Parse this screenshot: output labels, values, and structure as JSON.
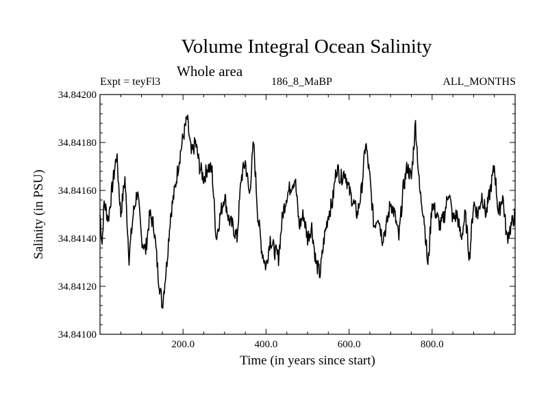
{
  "chart_data": {
    "type": "line",
    "title": "Volume Integral Ocean Salinity",
    "subtitle": "Whole area",
    "header_left": "Expt = teyFl3",
    "header_center": "186_8_MaBP",
    "header_right": "ALL_MONTHS",
    "xlabel": "Time (in years since start)",
    "ylabel": "Salinity (in PSU)",
    "xlim": [
      0,
      1000
    ],
    "ylim": [
      34.841,
      34.842
    ],
    "x_ticks": [
      200,
      400,
      600,
      800
    ],
    "x_tick_labels": [
      "200.0",
      "400.0",
      "600.0",
      "800.0"
    ],
    "y_ticks": [
      34.841,
      34.8412,
      34.8414,
      34.8416,
      34.8418,
      34.842
    ],
    "y_tick_labels": [
      "34.84100",
      "34.84120",
      "34.84140",
      "34.84160",
      "34.84180",
      "34.84200"
    ],
    "series": [
      {
        "name": "Salinity",
        "x": [
          0,
          5,
          10,
          20,
          30,
          40,
          50,
          60,
          70,
          80,
          90,
          100,
          110,
          120,
          130,
          140,
          150,
          160,
          170,
          180,
          190,
          200,
          210,
          220,
          230,
          240,
          250,
          260,
          270,
          280,
          290,
          300,
          310,
          320,
          330,
          340,
          350,
          360,
          370,
          380,
          390,
          400,
          410,
          420,
          430,
          440,
          450,
          460,
          470,
          480,
          490,
          500,
          510,
          520,
          530,
          540,
          550,
          560,
          570,
          580,
          590,
          600,
          610,
          620,
          630,
          640,
          650,
          660,
          670,
          680,
          690,
          700,
          710,
          720,
          730,
          740,
          750,
          760,
          770,
          780,
          790,
          800,
          810,
          820,
          830,
          840,
          850,
          860,
          870,
          880,
          890,
          900,
          910,
          920,
          930,
          940,
          950,
          960,
          970,
          980,
          990,
          1000
        ],
        "values": [
          34.8415,
          34.84138,
          34.84155,
          34.84148,
          34.84162,
          34.84175,
          34.8415,
          34.84165,
          34.84132,
          34.8415,
          34.8416,
          34.8414,
          34.84135,
          34.8415,
          34.84145,
          34.84125,
          34.84112,
          34.84128,
          34.8415,
          34.8416,
          34.84172,
          34.84182,
          34.8419,
          34.84175,
          34.8418,
          34.8417,
          34.84165,
          34.8417,
          34.84168,
          34.8414,
          34.8415,
          34.84158,
          34.84148,
          34.84145,
          34.8414,
          34.84165,
          34.84172,
          34.84158,
          34.8418,
          34.8415,
          34.84135,
          34.84128,
          34.8414,
          34.84135,
          34.84132,
          34.8415,
          34.84158,
          34.84162,
          34.84165,
          34.84145,
          34.8415,
          34.8414,
          34.84145,
          34.8413,
          34.84125,
          34.8414,
          34.8415,
          34.84155,
          34.8417,
          34.84165,
          34.84168,
          34.8416,
          34.84155,
          34.8415,
          34.8416,
          34.8418,
          34.84165,
          34.84145,
          34.8415,
          34.8414,
          34.84145,
          34.84155,
          34.8415,
          34.8414,
          34.8416,
          34.8417,
          34.84165,
          34.84188,
          34.8416,
          34.8415,
          34.84128,
          34.84155,
          34.8415,
          34.84145,
          34.8415,
          34.8416,
          34.84148,
          34.8415,
          34.8414,
          34.8415,
          34.84132,
          34.84155,
          34.8415,
          34.84158,
          34.8415,
          34.8416,
          34.8417,
          34.8415,
          34.84158,
          34.8414,
          34.84145,
          34.8415
        ]
      }
    ]
  }
}
